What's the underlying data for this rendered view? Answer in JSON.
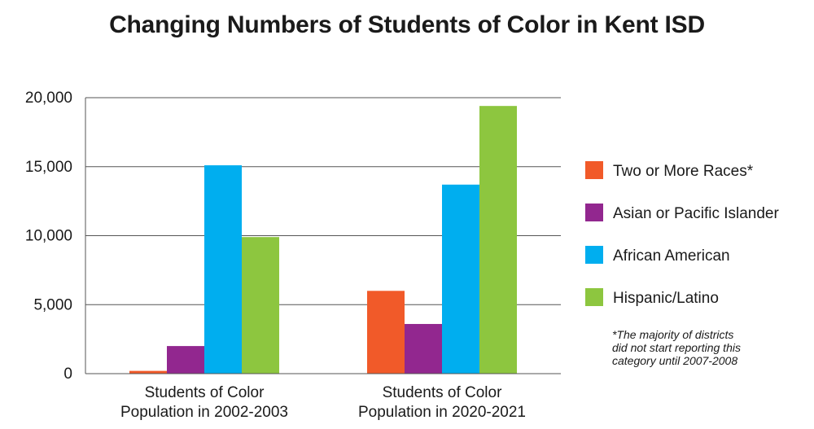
{
  "chart_data": {
    "type": "bar",
    "title": "Changing Numbers of Students of Color in Kent ISD",
    "categories": [
      [
        "Students of Color",
        "Population in 2002-2003"
      ],
      [
        "Students of Color",
        "Population in 2020-2021"
      ]
    ],
    "series": [
      {
        "name": "Two or More Races*",
        "color": "#f15a29",
        "values": [
          200,
          6000
        ]
      },
      {
        "name": "Asian or Pacific Islander",
        "color": "#92278f",
        "values": [
          2000,
          3600
        ]
      },
      {
        "name": "African American",
        "color": "#00aeef",
        "values": [
          15100,
          13700
        ]
      },
      {
        "name": "Hispanic/Latino",
        "color": "#8dc63f",
        "values": [
          9900,
          19400
        ]
      }
    ],
    "ylim": [
      0,
      20000
    ],
    "yticks": [
      0,
      5000,
      10000,
      15000,
      20000
    ],
    "ytick_labels": [
      "0",
      "5,000",
      "10,000",
      "15,000",
      "20,000"
    ],
    "grid": true,
    "legend_position": "right",
    "footnote": [
      "*The majority of districts",
      "did not start reporting this",
      "category until 2007-2008"
    ]
  }
}
